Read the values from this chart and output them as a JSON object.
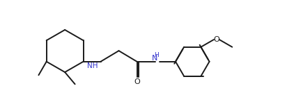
{
  "bg_color": "#ffffff",
  "line_color": "#1a1a1a",
  "nh_color": "#3333cc",
  "lw": 1.4,
  "figsize": [
    4.22,
    1.47
  ],
  "dpi": 100,
  "xlim": [
    0.0,
    10.5
  ],
  "ylim": [
    -1.0,
    3.2
  ]
}
